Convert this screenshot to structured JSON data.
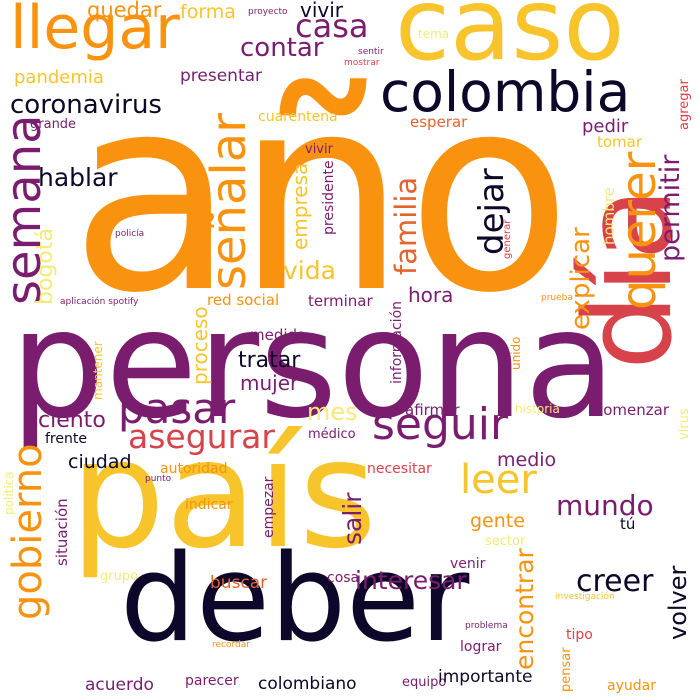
{
  "palette": {
    "black": "#0d0829",
    "purple": "#7a1d6f",
    "orange": "#f8920f",
    "yellow": "#f8c42c",
    "red": "#d8424a",
    "pale_yellow": "#f4ea7a",
    "orange_red": "#e4632f",
    "dark_purple": "#3a0b5c"
  },
  "words": [
    {
      "text": "año",
      "color": "orange"
    },
    {
      "text": "persona",
      "color": "purple"
    },
    {
      "text": "país",
      "color": "yellow"
    },
    {
      "text": "día",
      "color": "red"
    },
    {
      "text": "deber",
      "color": "black"
    },
    {
      "text": "caso",
      "color": "yellow"
    },
    {
      "text": "llegar",
      "color": "orange"
    },
    {
      "text": "colombia",
      "color": "black"
    },
    {
      "text": "semana",
      "color": "purple"
    },
    {
      "text": "señalar",
      "color": "orange"
    },
    {
      "text": "querer",
      "color": "orange"
    },
    {
      "text": "gobierno",
      "color": "orange"
    },
    {
      "text": "pasar",
      "color": "purple"
    },
    {
      "text": "seguir",
      "color": "purple"
    },
    {
      "text": "leer",
      "color": "yellow"
    },
    {
      "text": "dejar",
      "color": "black"
    },
    {
      "text": "hablar",
      "color": "black"
    },
    {
      "text": "familia",
      "color": "orange_red"
    },
    {
      "text": "asegurar",
      "color": "red"
    },
    {
      "text": "casa",
      "color": "purple"
    },
    {
      "text": "contar",
      "color": "purple"
    },
    {
      "text": "coronavirus",
      "color": "black"
    },
    {
      "text": "permitir",
      "color": "purple"
    },
    {
      "text": "explicar",
      "color": "orange"
    },
    {
      "text": "mundo",
      "color": "purple"
    },
    {
      "text": "volver",
      "color": "black"
    },
    {
      "text": "creer",
      "color": "black"
    },
    {
      "text": "interesar",
      "color": "purple"
    },
    {
      "text": "encontrar",
      "color": "orange"
    },
    {
      "text": "salir",
      "color": "purple"
    },
    {
      "text": "vida",
      "color": "yellow"
    },
    {
      "text": "bogotá",
      "color": "pale_yellow"
    },
    {
      "text": "empresa",
      "color": "yellow"
    },
    {
      "text": "mes",
      "color": "pale_yellow"
    },
    {
      "text": "hora",
      "color": "purple"
    },
    {
      "text": "tratar",
      "color": "black"
    },
    {
      "text": "mujer",
      "color": "purple"
    },
    {
      "text": "proceso",
      "color": "yellow"
    },
    {
      "text": "ciudad",
      "color": "black"
    },
    {
      "text": "ciento",
      "color": "purple"
    },
    {
      "text": "gente",
      "color": "orange"
    },
    {
      "text": "medio",
      "color": "purple"
    },
    {
      "text": "quedar",
      "color": "orange"
    },
    {
      "text": "forma",
      "color": "yellow"
    },
    {
      "text": "vivir",
      "color": "black"
    },
    {
      "text": "pandemia",
      "color": "yellow"
    },
    {
      "text": "presentar",
      "color": "purple"
    },
    {
      "text": "cuarentena",
      "color": "yellow"
    },
    {
      "text": "esperar",
      "color": "orange_red"
    },
    {
      "text": "pedir",
      "color": "purple"
    },
    {
      "text": "tomar",
      "color": "yellow"
    },
    {
      "text": "grande",
      "color": "purple"
    },
    {
      "text": "vivir",
      "color": "purple"
    },
    {
      "text": "presidente",
      "color": "purple"
    },
    {
      "text": "hombre",
      "color": "pale_yellow"
    },
    {
      "text": "agregar",
      "color": "red"
    },
    {
      "text": "red social",
      "color": "orange"
    },
    {
      "text": "terminar",
      "color": "purple"
    },
    {
      "text": "medida",
      "color": "purple"
    },
    {
      "text": "información",
      "color": "purple"
    },
    {
      "text": "mantener",
      "color": "yellow"
    },
    {
      "text": "unido",
      "color": "orange"
    },
    {
      "text": "afirmar",
      "color": "purple"
    },
    {
      "text": "historia",
      "color": "pale_yellow"
    },
    {
      "text": "comenzar",
      "color": "purple"
    },
    {
      "text": "frente",
      "color": "black"
    },
    {
      "text": "médico",
      "color": "purple"
    },
    {
      "text": "autoridad",
      "color": "orange"
    },
    {
      "text": "necesitar",
      "color": "red"
    },
    {
      "text": "indicar",
      "color": "orange"
    },
    {
      "text": "empezar",
      "color": "purple"
    },
    {
      "text": "tú",
      "color": "black"
    },
    {
      "text": "situación",
      "color": "purple"
    },
    {
      "text": "buscar",
      "color": "orange_red"
    },
    {
      "text": "cosa",
      "color": "purple"
    },
    {
      "text": "venir",
      "color": "purple"
    },
    {
      "text": "sector",
      "color": "pale_yellow"
    },
    {
      "text": "grupo",
      "color": "pale_yellow"
    },
    {
      "text": "acuerdo",
      "color": "purple"
    },
    {
      "text": "parecer",
      "color": "purple"
    },
    {
      "text": "colombiano",
      "color": "black"
    },
    {
      "text": "equipo",
      "color": "purple"
    },
    {
      "text": "importante",
      "color": "black"
    },
    {
      "text": "lograr",
      "color": "purple"
    },
    {
      "text": "tipo",
      "color": "red"
    },
    {
      "text": "pensar",
      "color": "orange"
    },
    {
      "text": "ayudar",
      "color": "orange"
    },
    {
      "text": "virus",
      "color": "pale_yellow"
    },
    {
      "text": "política",
      "color": "pale_yellow"
    },
    {
      "text": "punto",
      "color": "purple"
    },
    {
      "text": "policía",
      "color": "purple"
    },
    {
      "text": "aplicación spotify",
      "color": "purple"
    },
    {
      "text": "tema",
      "color": "pale_yellow"
    },
    {
      "text": "proyecto",
      "color": "purple"
    },
    {
      "text": "sentir",
      "color": "purple"
    },
    {
      "text": "mostrar",
      "color": "red"
    },
    {
      "text": "generar",
      "color": "red"
    },
    {
      "text": "prueba",
      "color": "orange"
    },
    {
      "text": "investigación",
      "color": "yellow"
    },
    {
      "text": "problema",
      "color": "purple"
    },
    {
      "text": "recordar",
      "color": "orange"
    }
  ]
}
